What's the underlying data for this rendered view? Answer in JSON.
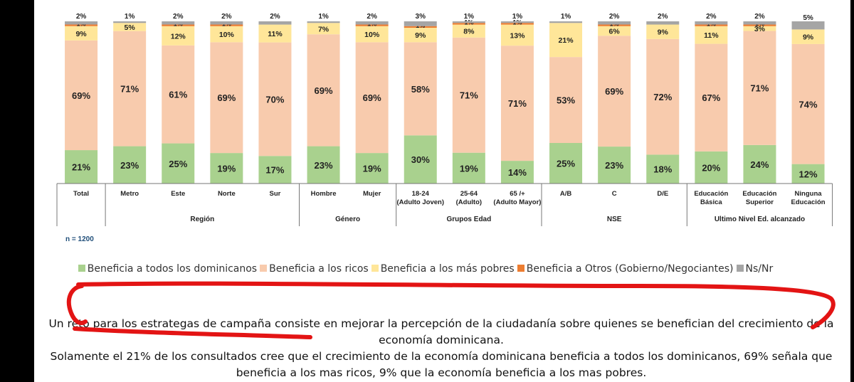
{
  "chart_data": {
    "type": "stacked-bar",
    "categories": [
      "Total",
      "Metro",
      "Este",
      "Norte",
      "Sur",
      "Hombre",
      "Mujer",
      "18-24 (Adulto Joven)",
      "25-64 (Adulto)",
      "65 /+ (Adulto Mayor)",
      "A/B",
      "C",
      "D/E",
      "Educación Básica",
      "Educación Superior",
      "Ninguna Educación"
    ],
    "groups": [
      {
        "label": "",
        "span": [
          0,
          0
        ]
      },
      {
        "label": "Región",
        "span": [
          1,
          4
        ]
      },
      {
        "label": "Género",
        "span": [
          5,
          6
        ]
      },
      {
        "label": "Grupos Edad",
        "span": [
          7,
          9
        ]
      },
      {
        "label": "NSE",
        "span": [
          10,
          12
        ]
      },
      {
        "label": "Ultimo Nivel Ed. alcanzado",
        "span": [
          13,
          15
        ]
      }
    ],
    "series": [
      {
        "name": "Beneficia a todos los dominicanos",
        "color": "#a9d18e",
        "values": [
          21,
          23,
          25,
          19,
          17,
          23,
          19,
          30,
          19,
          14,
          25,
          23,
          18,
          20,
          24,
          12
        ]
      },
      {
        "name": "Beneficia a los ricos",
        "color": "#f8cbad",
        "values": [
          69,
          71,
          61,
          69,
          70,
          69,
          69,
          58,
          71,
          71,
          53,
          69,
          72,
          67,
          71,
          74
        ]
      },
      {
        "name": "Beneficia a los más pobres",
        "color": "#ffe699",
        "values": [
          9,
          5,
          12,
          10,
          11,
          7,
          10,
          9,
          8,
          13,
          21,
          6,
          9,
          11,
          3,
          9
        ]
      },
      {
        "name": "Beneficia a Otros (Gobierno/Negociantes)",
        "color": "#ed7d31",
        "values": [
          1,
          null,
          1,
          1,
          null,
          null,
          1,
          1,
          1,
          1,
          null,
          1,
          null,
          1,
          1,
          null
        ]
      },
      {
        "name": "Ns/Nr",
        "color": "#a5a5a5",
        "values": [
          2,
          1,
          2,
          2,
          2,
          1,
          2,
          3,
          1,
          1,
          1,
          2,
          2,
          2,
          2,
          5
        ]
      }
    ],
    "ylim": [
      0,
      100
    ],
    "note": "n = 1200"
  },
  "text": {
    "line1": "Un reto para los estrategas de campaña consiste en mejorar la percepción de la ciudadanía sobre quienes se benefician del crecimiento de la economía dominicana.",
    "line2": "Solamente el 21% de los consultados cree que el crecimiento de la economía dominicana beneficia a todos los dominicanos, 69% señala que beneficia a los mas ricos, 9% que la economía beneficia a los mas pobres."
  }
}
